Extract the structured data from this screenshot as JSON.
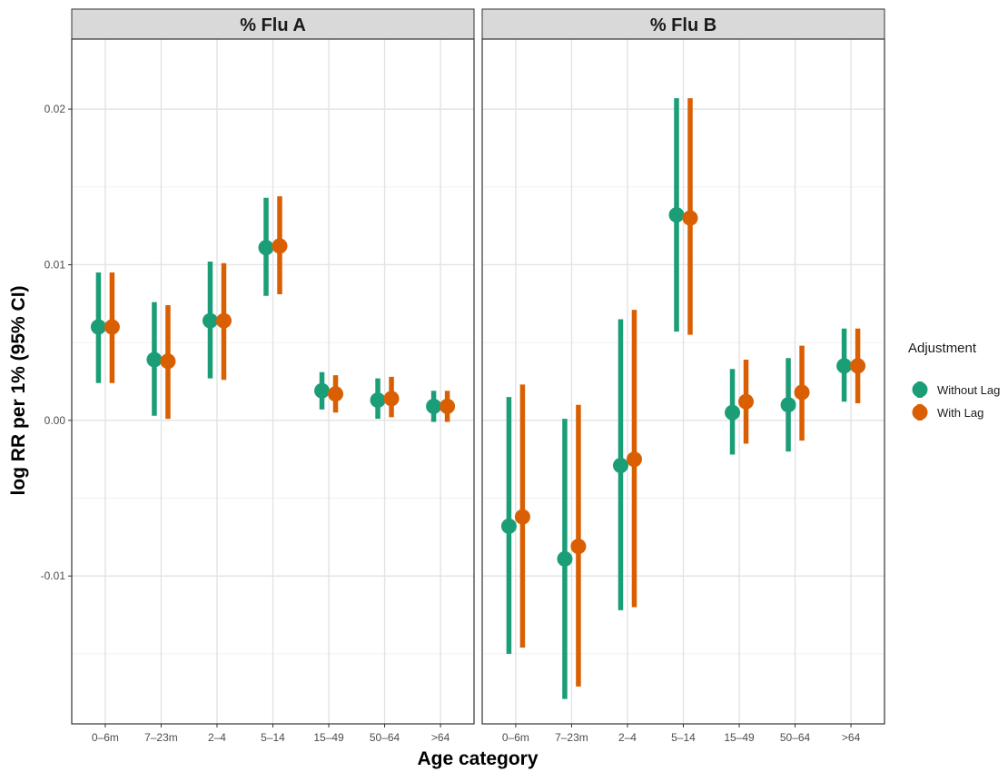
{
  "chart_data": {
    "type": "scatter",
    "subtype": "point-range (estimate with 95% CI), faceted",
    "ylabel": "log RR per 1% (95% CI)",
    "xlabel": "Age category",
    "categories": [
      "0–6m",
      "7–23m",
      "2–4",
      "5–14",
      "15–49",
      "50–64",
      ">64"
    ],
    "ylim": [
      -0.0195,
      0.0245
    ],
    "yticks": [
      -0.01,
      0.0,
      0.01,
      0.02
    ],
    "ytick_labels": [
      "-0.01",
      "0.00",
      "0.01",
      "0.02"
    ],
    "grid": true,
    "legend": {
      "title": "Adjustment",
      "placement": "right",
      "entries": [
        {
          "label": "Without Lag",
          "color": "#1b9e77"
        },
        {
          "label": "With Lag",
          "color": "#d95f02"
        }
      ]
    },
    "panels": [
      {
        "title": "% Flu A",
        "series": [
          {
            "name": "Without Lag",
            "color": "#1b9e77",
            "estimate": [
              0.006,
              0.0039,
              0.0064,
              0.0111,
              0.0019,
              0.0013,
              0.0009
            ],
            "lower": [
              0.0024,
              0.0003,
              0.0027,
              0.008,
              0.0007,
              0.0001,
              -0.0001
            ],
            "upper": [
              0.0095,
              0.0076,
              0.0102,
              0.0143,
              0.0031,
              0.0027,
              0.0019
            ]
          },
          {
            "name": "With Lag",
            "color": "#d95f02",
            "estimate": [
              0.006,
              0.0038,
              0.0064,
              0.0112,
              0.0017,
              0.0014,
              0.0009
            ],
            "lower": [
              0.0024,
              0.0001,
              0.0026,
              0.0081,
              0.0005,
              0.0002,
              -0.0001
            ],
            "upper": [
              0.0095,
              0.0074,
              0.0101,
              0.0144,
              0.0029,
              0.0028,
              0.0019
            ]
          }
        ]
      },
      {
        "title": "% Flu B",
        "series": [
          {
            "name": "Without Lag",
            "color": "#1b9e77",
            "estimate": [
              -0.0068,
              -0.0089,
              -0.0029,
              0.0132,
              0.0005,
              0.001,
              0.0035
            ],
            "lower": [
              -0.015,
              -0.0179,
              -0.0122,
              0.0057,
              -0.0022,
              -0.002,
              0.0012
            ],
            "upper": [
              0.0015,
              0.0001,
              0.0065,
              0.0207,
              0.0033,
              0.004,
              0.0059
            ]
          },
          {
            "name": "With Lag",
            "color": "#d95f02",
            "estimate": [
              -0.0062,
              -0.0081,
              -0.0025,
              0.013,
              0.0012,
              0.0018,
              0.0035
            ],
            "lower": [
              -0.0146,
              -0.0171,
              -0.012,
              0.0055,
              -0.0015,
              -0.0013,
              0.0011
            ],
            "upper": [
              0.0023,
              0.001,
              0.0071,
              0.0207,
              0.0039,
              0.0048,
              0.0059
            ]
          }
        ]
      }
    ]
  }
}
